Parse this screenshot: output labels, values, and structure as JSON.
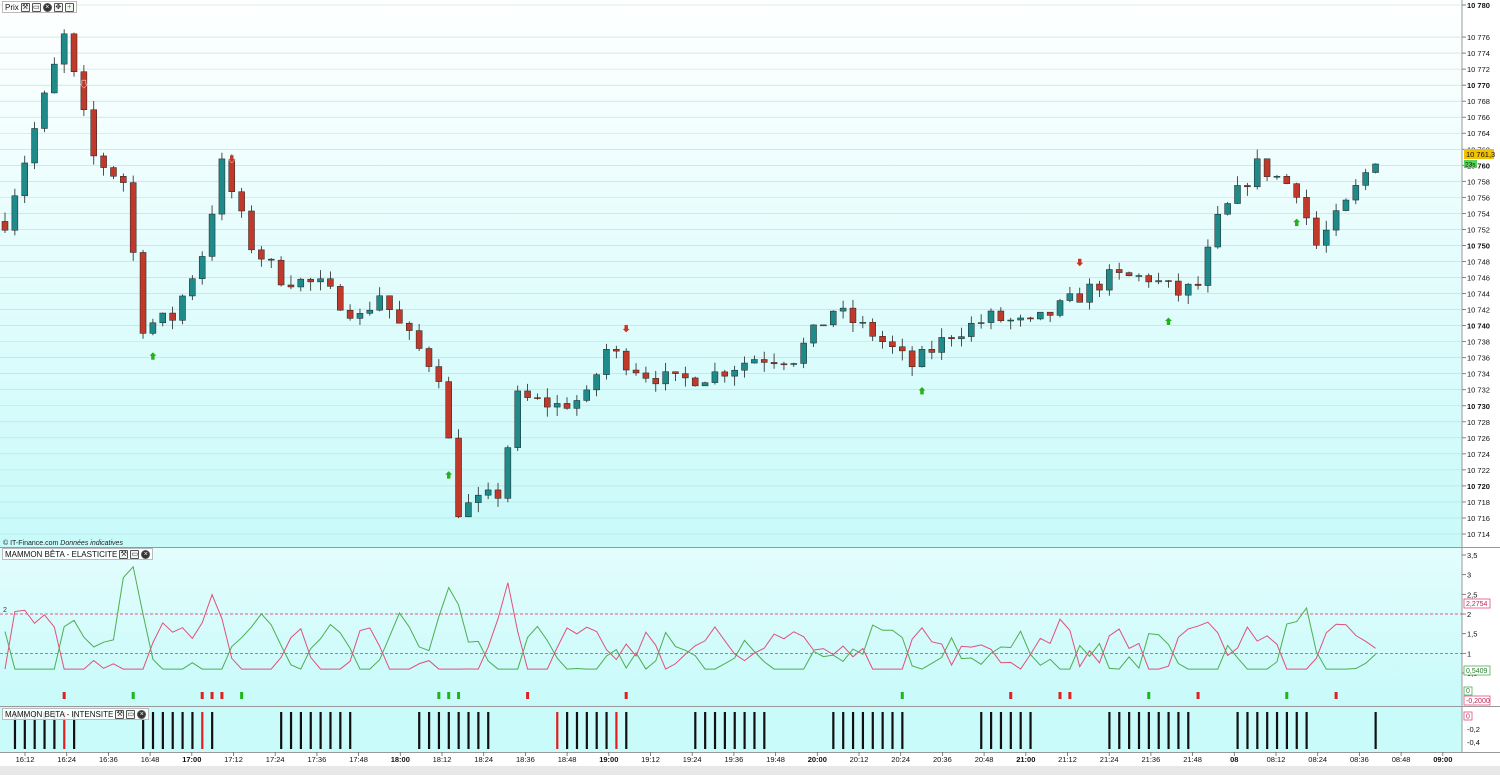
{
  "panes": {
    "price": {
      "title": "Prix",
      "watermark_site": "© IT-Finance.com",
      "watermark_note": "Données indicatives",
      "last_price": "10 761,3",
      "last_badge": "23s"
    },
    "elasticite": {
      "title": "MAMMON BÊTA - ELASTICITE",
      "level_label": "2",
      "value_red": "2,2754",
      "value_green": "0,5409",
      "value_zero": "0",
      "value_neg": "-0,2000"
    },
    "intensite": {
      "title": "MAMMON BETA - INTENSITE",
      "value_zero": "0"
    }
  },
  "price_axis": [
    {
      "label": "10 780",
      "v": 10780,
      "major": true
    },
    {
      "label": "10 776",
      "v": 10776
    },
    {
      "label": "10 774",
      "v": 10774
    },
    {
      "label": "10 772",
      "v": 10772
    },
    {
      "label": "10 770",
      "v": 10770,
      "major": true
    },
    {
      "label": "10 768",
      "v": 10768
    },
    {
      "label": "10 766",
      "v": 10766
    },
    {
      "label": "10 764",
      "v": 10764
    },
    {
      "label": "10 762",
      "v": 10762
    },
    {
      "label": "10 760",
      "v": 10760,
      "major": true
    },
    {
      "label": "10 758",
      "v": 10758
    },
    {
      "label": "10 756",
      "v": 10756
    },
    {
      "label": "10 754",
      "v": 10754
    },
    {
      "label": "10 752",
      "v": 10752
    },
    {
      "label": "10 750",
      "v": 10750,
      "major": true
    },
    {
      "label": "10 748",
      "v": 10748
    },
    {
      "label": "10 746",
      "v": 10746
    },
    {
      "label": "10 744",
      "v": 10744
    },
    {
      "label": "10 742",
      "v": 10742
    },
    {
      "label": "10 740",
      "v": 10740,
      "major": true
    },
    {
      "label": "10 738",
      "v": 10738
    },
    {
      "label": "10 736",
      "v": 10736
    },
    {
      "label": "10 734",
      "v": 10734
    },
    {
      "label": "10 732",
      "v": 10732
    },
    {
      "label": "10 730",
      "v": 10730,
      "major": true
    },
    {
      "label": "10 728",
      "v": 10728
    },
    {
      "label": "10 726",
      "v": 10726
    },
    {
      "label": "10 724",
      "v": 10724
    },
    {
      "label": "10 722",
      "v": 10722
    },
    {
      "label": "10 720",
      "v": 10720,
      "major": true
    },
    {
      "label": "10 718",
      "v": 10718
    },
    {
      "label": "10 716",
      "v": 10716
    },
    {
      "label": "10 714",
      "v": 10714
    }
  ],
  "osc_axis": [
    {
      "label": "3,5",
      "v": 3.5
    },
    {
      "label": "3",
      "v": 3
    },
    {
      "label": "2,5",
      "v": 2.5
    },
    {
      "label": "2",
      "v": 2
    },
    {
      "label": "1,5",
      "v": 1.5
    },
    {
      "label": "1",
      "v": 1
    },
    {
      "label": "0,5",
      "v": 0.5
    }
  ],
  "int_axis": [
    {
      "label": "-0,2",
      "v": -0.2
    },
    {
      "label": "-0,4",
      "v": -0.4
    }
  ],
  "time_axis": [
    {
      "label": "16:12"
    },
    {
      "label": "16:24"
    },
    {
      "label": "16:36"
    },
    {
      "label": "16:48"
    },
    {
      "label": "17:00",
      "major": true
    },
    {
      "label": "17:12"
    },
    {
      "label": "17:24"
    },
    {
      "label": "17:36"
    },
    {
      "label": "17:48"
    },
    {
      "label": "18:00",
      "major": true
    },
    {
      "label": "18:12"
    },
    {
      "label": "18:24"
    },
    {
      "label": "18:36"
    },
    {
      "label": "18:48"
    },
    {
      "label": "19:00",
      "major": true
    },
    {
      "label": "19:12"
    },
    {
      "label": "19:24"
    },
    {
      "label": "19:36"
    },
    {
      "label": "19:48"
    },
    {
      "label": "20:00",
      "major": true
    },
    {
      "label": "20:12"
    },
    {
      "label": "20:24"
    },
    {
      "label": "20:36"
    },
    {
      "label": "20:48"
    },
    {
      "label": "21:00",
      "major": true
    },
    {
      "label": "21:12"
    },
    {
      "label": "21:24"
    },
    {
      "label": "21:36"
    },
    {
      "label": "21:48"
    },
    {
      "label": "08",
      "major": true
    },
    {
      "label": "08:12"
    },
    {
      "label": "08:24"
    },
    {
      "label": "08:36"
    },
    {
      "label": "08:48"
    },
    {
      "label": "09:00",
      "major": true
    }
  ],
  "colors": {
    "up": "#1f8a8a",
    "down": "#c0392b",
    "bg_top": "#ffffff",
    "bg_bottom": "#c9fbfb",
    "osc_red": "#e0507a",
    "osc_green": "#4caf50",
    "signal_green": "#1db41d",
    "signal_red": "#e02020"
  },
  "chart_data": {
    "type": "candlestick",
    "ylim": [
      10713,
      10781
    ],
    "price_path": [
      [
        0,
        10753
      ],
      [
        6,
        10776
      ],
      [
        9,
        10761
      ],
      [
        12,
        10758
      ],
      [
        14,
        10740
      ],
      [
        17,
        10741
      ],
      [
        20,
        10749
      ],
      [
        22,
        10760
      ],
      [
        25,
        10750
      ],
      [
        28,
        10746
      ],
      [
        32,
        10745
      ],
      [
        36,
        10741
      ],
      [
        38,
        10744
      ],
      [
        40,
        10740
      ],
      [
        44,
        10734
      ],
      [
        46,
        10717
      ],
      [
        50,
        10719
      ],
      [
        52,
        10731
      ],
      [
        56,
        10730
      ],
      [
        59,
        10731
      ],
      [
        61,
        10737
      ],
      [
        65,
        10734
      ],
      [
        68,
        10733
      ],
      [
        72,
        10734
      ],
      [
        76,
        10736
      ],
      [
        80,
        10736
      ],
      [
        84,
        10742
      ],
      [
        88,
        10739
      ],
      [
        92,
        10735
      ],
      [
        96,
        10739
      ],
      [
        100,
        10741
      ],
      [
        104,
        10740
      ],
      [
        108,
        10743
      ],
      [
        112,
        10746
      ],
      [
        116,
        10746
      ],
      [
        119,
        10744
      ],
      [
        121,
        10745
      ],
      [
        123,
        10753
      ],
      [
        127,
        10760
      ],
      [
        131,
        10757
      ],
      [
        133,
        10750
      ],
      [
        136,
        10755
      ],
      [
        139,
        10761
      ]
    ],
    "down_arrows": [
      8,
      23,
      63,
      109
    ],
    "up_arrows": [
      15,
      45,
      93,
      118,
      131
    ],
    "osc_signals_green": [
      13,
      24,
      44,
      45,
      46,
      91,
      116,
      130
    ],
    "osc_signals_red": [
      6,
      20,
      21,
      22,
      53,
      63,
      102,
      107,
      108,
      121,
      135
    ],
    "intensity_red": [
      6,
      20,
      56,
      62
    ]
  }
}
